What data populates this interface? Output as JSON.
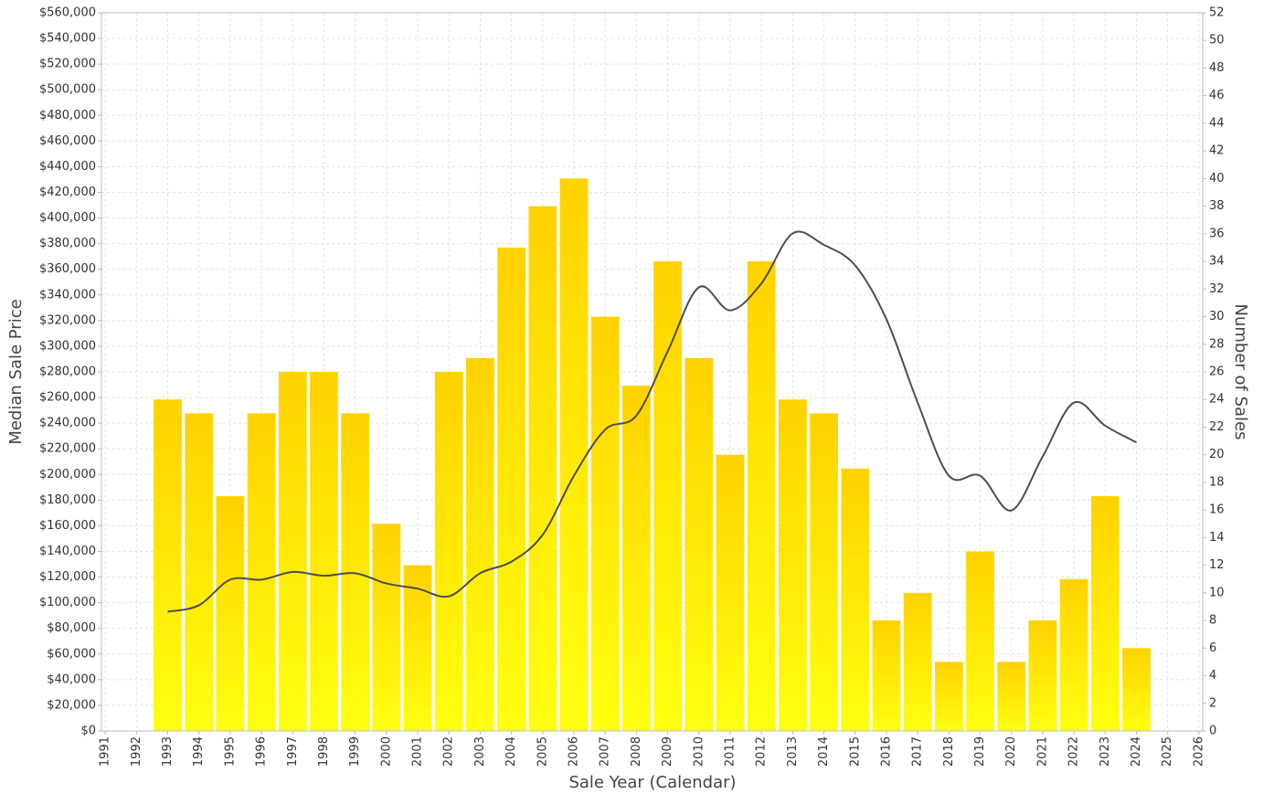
{
  "chart_data": {
    "type": "bar-line",
    "xlabel": "Sale Year (Calendar)",
    "x": [
      1991,
      1992,
      1993,
      1994,
      1995,
      1996,
      1997,
      1998,
      1999,
      2000,
      2001,
      2002,
      2003,
      2004,
      2005,
      2006,
      2007,
      2008,
      2009,
      2010,
      2011,
      2012,
      2013,
      2014,
      2015,
      2016,
      2017,
      2018,
      2019,
      2020,
      2021,
      2022,
      2023,
      2024,
      2025,
      2026
    ],
    "xlim": [
      1990.88,
      2026.12
    ],
    "xticks": [
      1991,
      1992,
      1993,
      1994,
      1995,
      1996,
      1997,
      1998,
      1999,
      2000,
      2001,
      2002,
      2003,
      2004,
      2005,
      2006,
      2007,
      2008,
      2009,
      2010,
      2011,
      2012,
      2013,
      2014,
      2015,
      2016,
      2017,
      2018,
      2019,
      2020,
      2021,
      2022,
      2023,
      2024,
      2025,
      2026
    ],
    "ylim": [
      0,
      560000
    ],
    "yticks": [
      {
        "value": 0,
        "label": "$0"
      },
      {
        "value": 20000,
        "label": "$20,000"
      },
      {
        "value": 40000,
        "label": "$40,000"
      },
      {
        "value": 60000,
        "label": "$60,000"
      },
      {
        "value": 80000,
        "label": "$80,000"
      },
      {
        "value": 100000,
        "label": "$100,000"
      },
      {
        "value": 120000,
        "label": "$120,000"
      },
      {
        "value": 140000,
        "label": "$140,000"
      },
      {
        "value": 160000,
        "label": "$160,000"
      },
      {
        "value": 180000,
        "label": "$180,000"
      },
      {
        "value": 200000,
        "label": "$200,000"
      },
      {
        "value": 220000,
        "label": "$220,000"
      },
      {
        "value": 240000,
        "label": "$240,000"
      },
      {
        "value": 260000,
        "label": "$260,000"
      },
      {
        "value": 280000,
        "label": "$280,000"
      },
      {
        "value": 300000,
        "label": "$300,000"
      },
      {
        "value": 320000,
        "label": "$320,000"
      },
      {
        "value": 340000,
        "label": "$340,000"
      },
      {
        "value": 360000,
        "label": "$360,000"
      },
      {
        "value": 380000,
        "label": "$380,000"
      },
      {
        "value": 400000,
        "label": "$400,000"
      },
      {
        "value": 420000,
        "label": "$420,000"
      },
      {
        "value": 440000,
        "label": "$440,000"
      },
      {
        "value": 460000,
        "label": "$460,000"
      },
      {
        "value": 480000,
        "label": "$480,000"
      },
      {
        "value": 500000,
        "label": "$500,000"
      },
      {
        "value": 520000,
        "label": "$520,000"
      },
      {
        "value": 540000,
        "label": "$540,000"
      },
      {
        "value": 560000,
        "label": "$560,000"
      }
    ],
    "y2lim": [
      0,
      52
    ],
    "y2ticks": [
      0,
      2,
      4,
      6,
      8,
      10,
      12,
      14,
      16,
      18,
      20,
      22,
      24,
      26,
      28,
      30,
      32,
      34,
      36,
      38,
      40,
      42,
      44,
      46,
      48,
      50,
      52
    ],
    "grid": true,
    "series": [
      {
        "name": "Median Sale Price",
        "type": "line",
        "color": "#4d4d4d",
        "values": [
          null,
          null,
          93000,
          98000,
          118000,
          118000,
          124000,
          121000,
          123000,
          115000,
          111000,
          105000,
          123000,
          132000,
          153000,
          199000,
          235000,
          246000,
          296000,
          346000,
          328000,
          349000,
          388000,
          379000,
          363000,
          321000,
          256000,
          199000,
          199000,
          172000,
          214000,
          256000,
          238000,
          225000,
          null,
          null
        ]
      },
      {
        "name": "Number of Sales",
        "type": "bar",
        "axis": "y2",
        "color": "#ffd200",
        "values": [
          null,
          null,
          24,
          23,
          17,
          23,
          26,
          26,
          23,
          15,
          12,
          26,
          27,
          35,
          38,
          40,
          30,
          25,
          34,
          27,
          20,
          34,
          24,
          23,
          19,
          8,
          10,
          5,
          13,
          5,
          8,
          11,
          17,
          6,
          null,
          null
        ]
      }
    ]
  }
}
